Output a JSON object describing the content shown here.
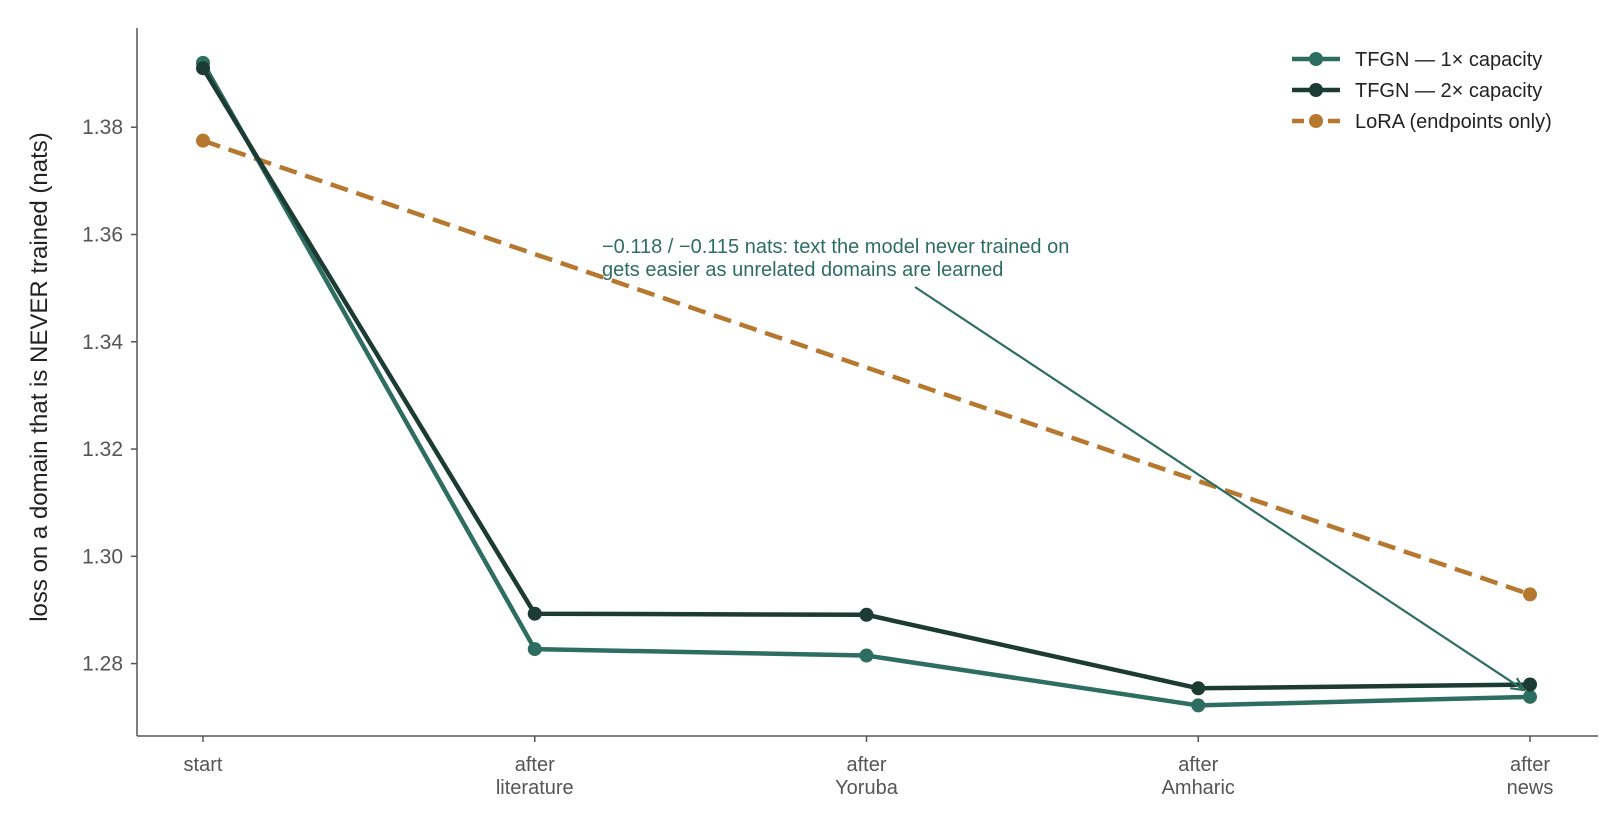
{
  "chart_data": {
    "type": "line",
    "categories": [
      [
        "start"
      ],
      [
        "after",
        "literature"
      ],
      [
        "after",
        "Yoruba"
      ],
      [
        "after",
        "Amharic"
      ],
      [
        "after",
        "news"
      ]
    ],
    "ylabel": "loss on a domain that is NEVER trained (nats)",
    "xlabel": "",
    "title": "",
    "ylim": [
      1.2665,
      1.3985
    ],
    "yticks": [
      "1.28",
      "1.30",
      "1.32",
      "1.34",
      "1.36",
      "1.38"
    ],
    "ytick_values": [
      1.28,
      1.3,
      1.32,
      1.34,
      1.36,
      1.38
    ],
    "grid": false,
    "legend_position": "top-right",
    "series": [
      {
        "name": "TFGN — 1× capacity",
        "color": "#2e6e60",
        "style": "solid",
        "points": [
          {
            "x": 0,
            "y": 1.392
          },
          {
            "x": 1,
            "y": 1.2827
          },
          {
            "x": 2,
            "y": 1.2815
          },
          {
            "x": 3,
            "y": 1.2722
          },
          {
            "x": 4,
            "y": 1.2738
          }
        ]
      },
      {
        "name": "TFGN — 2× capacity",
        "color": "#1b3b33",
        "style": "solid",
        "points": [
          {
            "x": 0,
            "y": 1.391
          },
          {
            "x": 1,
            "y": 1.2893
          },
          {
            "x": 2,
            "y": 1.2891
          },
          {
            "x": 3,
            "y": 1.2754
          },
          {
            "x": 4,
            "y": 1.2761
          }
        ]
      },
      {
        "name": "LoRA (endpoints only)",
        "color": "#b5782e",
        "style": "dashed",
        "points": [
          {
            "x": 0,
            "y": 1.3775
          },
          {
            "x": 4,
            "y": 1.2929
          }
        ]
      }
    ],
    "annotation": {
      "lines": [
        "−0.118 / −0.115 nats: text the model never trained on",
        "gets easier as unrelated domains are learned"
      ],
      "color": "#2e6e60",
      "target": {
        "x": 4,
        "y": 1.2745
      }
    }
  }
}
